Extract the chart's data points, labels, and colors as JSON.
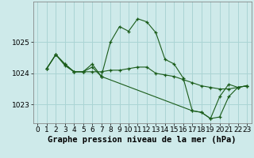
{
  "background_color": "#ceeaea",
  "grid_color": "#aad4d4",
  "line_color": "#1a5c1a",
  "marker_color": "#1a5c1a",
  "title": "Graphe pression niveau de la mer (hPa)",
  "title_fontsize": 7.5,
  "tick_fontsize": 6.5,
  "xlim": [
    -0.5,
    23.5
  ],
  "ylim": [
    1022.4,
    1026.3
  ],
  "yticks": [
    1023,
    1024,
    1025
  ],
  "xticks": [
    0,
    1,
    2,
    3,
    4,
    5,
    6,
    7,
    8,
    9,
    10,
    11,
    12,
    13,
    14,
    15,
    16,
    17,
    18,
    19,
    20,
    21,
    22,
    23
  ],
  "series": [
    {
      "x": [
        1,
        2,
        3,
        4,
        5,
        6,
        7,
        8,
        9,
        10,
        11,
        12,
        13,
        14,
        15,
        16,
        17,
        18,
        19,
        20,
        21,
        22,
        23
      ],
      "y": [
        1024.15,
        1024.6,
        1024.3,
        1024.05,
        1024.05,
        1024.3,
        1023.9,
        1025.0,
        1025.5,
        1025.35,
        1025.75,
        1025.65,
        1025.3,
        1024.45,
        1024.3,
        1023.85,
        1022.8,
        1022.75,
        1022.55,
        1023.25,
        1023.65,
        1023.55,
        1023.6
      ]
    },
    {
      "x": [
        1,
        2,
        3,
        4,
        5,
        6,
        7,
        8,
        9,
        10,
        11,
        12,
        13,
        14,
        15,
        16,
        17,
        18,
        19,
        20,
        21,
        22,
        23
      ],
      "y": [
        1024.15,
        1024.6,
        1024.3,
        1024.05,
        1024.05,
        1024.05,
        1024.05,
        1024.1,
        1024.1,
        1024.15,
        1024.2,
        1024.2,
        1024.0,
        1023.95,
        1023.9,
        1023.8,
        1023.7,
        1023.6,
        1023.55,
        1023.5,
        1023.5,
        1023.55,
        1023.6
      ]
    },
    {
      "x": [
        1,
        2,
        3,
        4,
        5,
        6,
        7
      ],
      "y": [
        1024.15,
        1024.6,
        1024.25,
        1024.05,
        1024.05,
        1024.2,
        1023.9
      ]
    },
    {
      "x": [
        7,
        17,
        18,
        19,
        20,
        21,
        22,
        23
      ],
      "y": [
        1023.9,
        1022.8,
        1022.75,
        1022.55,
        1022.6,
        1023.25,
        1023.55,
        1023.6
      ]
    }
  ]
}
